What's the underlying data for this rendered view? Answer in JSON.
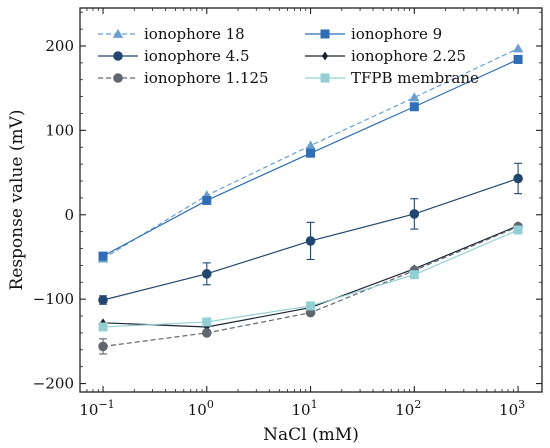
{
  "chart_data": {
    "type": "line",
    "title": "",
    "xlabel": "NaCl (mM)",
    "ylabel": "Response value (mV)",
    "xscale": "log",
    "x": [
      0.1,
      1,
      10,
      100,
      1000
    ],
    "xticks": [
      0.1,
      1,
      10,
      100,
      1000
    ],
    "xtick_labels": [
      {
        "base": "10",
        "exp": "−1"
      },
      {
        "base": "10",
        "exp": "0"
      },
      {
        "base": "10",
        "exp": "1"
      },
      {
        "base": "10",
        "exp": "2"
      },
      {
        "base": "10",
        "exp": "3"
      }
    ],
    "ylim": [
      -210,
      245
    ],
    "yticks": [
      -200,
      -100,
      0,
      100,
      200
    ],
    "ytick_labels": [
      "−200",
      "−100",
      "0",
      "100",
      "200"
    ],
    "grid": false,
    "legend": "top-left, 2 columns",
    "series": [
      {
        "name": "ionophore 18",
        "values": [
          -52,
          23,
          82,
          139,
          197
        ],
        "errors": [
          0,
          0,
          0,
          0,
          0
        ],
        "color": "#6a9fd0",
        "dash": "dashed",
        "marker": "triangle"
      },
      {
        "name": "ionophore 9",
        "values": [
          -49,
          17,
          73,
          128,
          184
        ],
        "errors": [
          0,
          0,
          0,
          0,
          0
        ],
        "color": "#2f6db5",
        "dash": "solid",
        "marker": "square"
      },
      {
        "name": "ionophore 4.5",
        "values": [
          -101,
          -70,
          -31,
          1,
          43
        ],
        "errors": [
          5,
          13,
          22,
          18,
          18
        ],
        "color": "#23466f",
        "dash": "solid",
        "marker": "circle"
      },
      {
        "name": "ionophore 2.25",
        "values": [
          -128,
          -133,
          -110,
          -64,
          -13
        ],
        "errors": [
          0,
          0,
          0,
          0,
          0
        ],
        "color": "#1b2332",
        "dash": "solid",
        "marker": "diamond"
      },
      {
        "name": "ionophore 1.125",
        "values": [
          -156,
          -140,
          -116,
          -66,
          -14
        ],
        "errors": [
          9,
          0,
          0,
          0,
          0
        ],
        "color": "#5f6670",
        "dash": "dashed",
        "marker": "circle"
      },
      {
        "name": "TFPB membrane",
        "values": [
          -133,
          -127,
          -108,
          -71,
          -18
        ],
        "errors": [
          0,
          0,
          0,
          0,
          0
        ],
        "color": "#94d0d3",
        "dash": "solid",
        "marker": "square"
      }
    ]
  }
}
